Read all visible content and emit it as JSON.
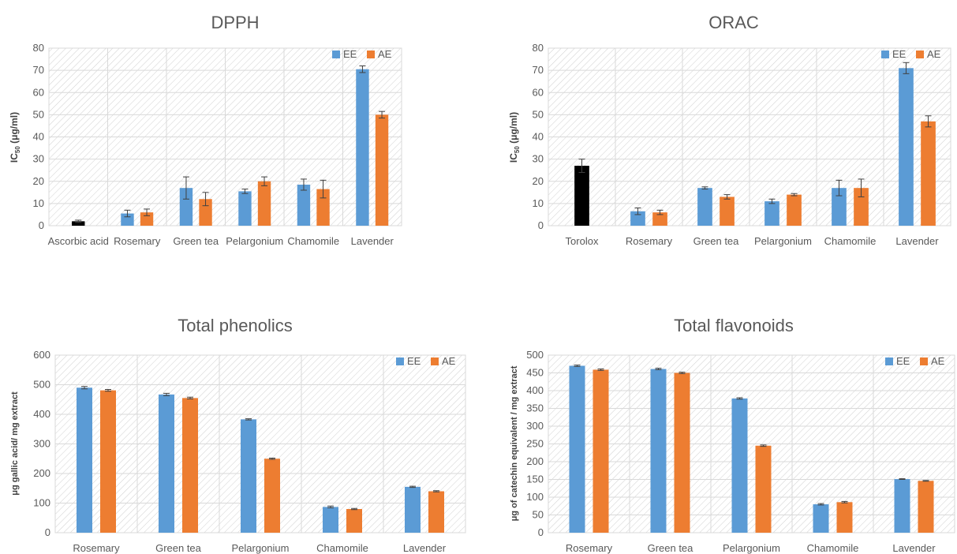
{
  "colors": {
    "ee": "#5b9bd5",
    "ae": "#ed7d31",
    "reference": "#000000",
    "grid": "#d9d9d9",
    "text": "#595959"
  },
  "chart_data": [
    {
      "type": "bar",
      "title": "DPPH",
      "ylabel_main": "IC",
      "ylabel_sub": "50",
      "ylabel_tail": " (μg/ml)",
      "ylim": [
        0,
        80
      ],
      "yticks": [
        0,
        10,
        20,
        30,
        40,
        50,
        60,
        70,
        80
      ],
      "categories": [
        "Ascorbic acid",
        "Rosemary",
        "Green tea",
        "Pelargonium",
        "Chamomile",
        "Lavender"
      ],
      "reference": {
        "category": "Ascorbic acid",
        "value": 2,
        "error": 0.5
      },
      "series": [
        {
          "name": "EE",
          "values": [
            null,
            5.5,
            17,
            15.5,
            18.5,
            70.5
          ],
          "errors": [
            null,
            1.5,
            5,
            1,
            2.5,
            1.5
          ]
        },
        {
          "name": "AE",
          "values": [
            null,
            6,
            12,
            20,
            16.5,
            50
          ],
          "errors": [
            null,
            1.5,
            3,
            2,
            4,
            1.5
          ]
        }
      ],
      "grid": true,
      "legend": "top-right"
    },
    {
      "type": "bar",
      "title": "ORAC",
      "ylabel_main": "IC",
      "ylabel_sub": "50",
      "ylabel_tail": " (μg/ml)",
      "ylim": [
        0,
        80
      ],
      "yticks": [
        0,
        10,
        20,
        30,
        40,
        50,
        60,
        70,
        80
      ],
      "categories": [
        "Torolox",
        "Rosemary",
        "Green tea",
        "Pelargonium",
        "Chamomile",
        "Lavender"
      ],
      "reference": {
        "category": "Torolox",
        "value": 27,
        "error": 3
      },
      "series": [
        {
          "name": "EE",
          "values": [
            null,
            6.5,
            17,
            11,
            17,
            71
          ],
          "errors": [
            null,
            1.5,
            0.5,
            1,
            3.5,
            2.5
          ]
        },
        {
          "name": "AE",
          "values": [
            null,
            6,
            13,
            14,
            17,
            47
          ],
          "errors": [
            null,
            1,
            1,
            0.5,
            4,
            2.5
          ]
        }
      ],
      "grid": true,
      "legend": "top-right"
    },
    {
      "type": "bar",
      "title": "Total phenolics",
      "ylabel_main": "μg gallic acid/ mg extract",
      "ylim": [
        0,
        600
      ],
      "yticks": [
        0,
        100,
        200,
        300,
        400,
        500,
        600
      ],
      "categories": [
        "Rosemary",
        "Green tea",
        "Pelargonium",
        "Chamomile",
        "Lavender"
      ],
      "series": [
        {
          "name": "EE",
          "values": [
            490,
            467,
            383,
            87,
            155
          ],
          "errors": [
            4,
            4,
            2,
            3,
            2
          ]
        },
        {
          "name": "AE",
          "values": [
            481,
            455,
            250,
            80,
            140
          ],
          "errors": [
            3,
            3,
            2,
            2,
            2
          ]
        }
      ],
      "grid": true,
      "legend": "top-right"
    },
    {
      "type": "bar",
      "title": "Total flavonoids",
      "ylabel_main": "μg of catechin equivalent / mg extract",
      "ylim": [
        0,
        500
      ],
      "yticks": [
        0,
        50,
        100,
        150,
        200,
        250,
        300,
        350,
        400,
        450,
        500
      ],
      "categories": [
        "Rosemary",
        "Green tea",
        "Pelargonium",
        "Chamomile",
        "Lavender"
      ],
      "series": [
        {
          "name": "EE",
          "values": [
            470,
            461,
            378,
            80,
            151
          ],
          "errors": [
            2,
            2,
            2,
            2,
            1
          ]
        },
        {
          "name": "AE",
          "values": [
            459,
            450,
            245,
            86,
            146
          ],
          "errors": [
            2,
            2,
            2,
            2,
            1
          ]
        }
      ],
      "grid": true,
      "legend": "top-right"
    }
  ]
}
